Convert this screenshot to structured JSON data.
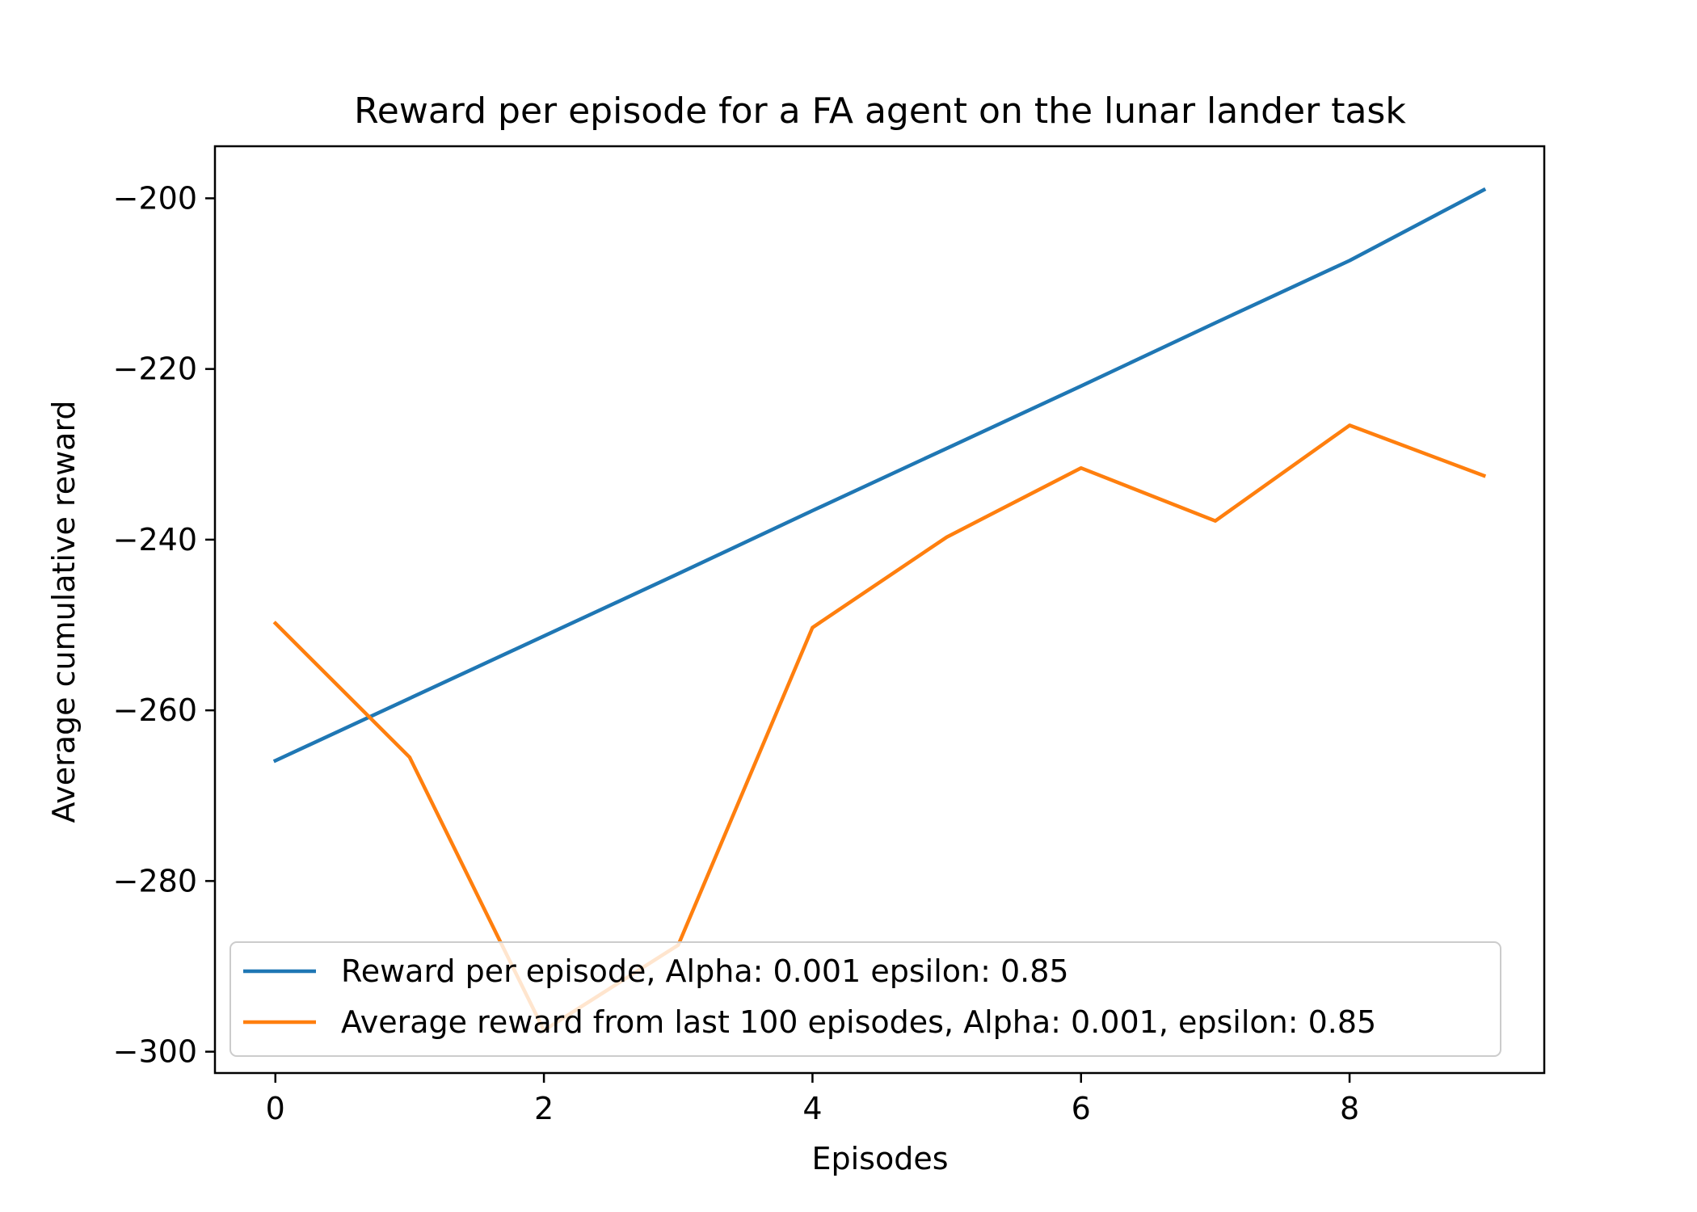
{
  "chart_data": {
    "type": "line",
    "title": "Reward per episode for a FA agent on the lunar lander task",
    "xlabel": "Episodes",
    "ylabel": "Average cumulative reward",
    "xlim": [
      -0.45,
      9.45
    ],
    "ylim": [
      -302.5,
      -193.9
    ],
    "xticks": [
      0,
      2,
      4,
      6,
      8
    ],
    "xtick_labels": [
      "0",
      "2",
      "4",
      "6",
      "8"
    ],
    "yticks": [
      -200,
      -220,
      -240,
      -260,
      -280,
      -300
    ],
    "ytick_labels": [
      "−200",
      "−220",
      "−240",
      "−260",
      "−280",
      "−300"
    ],
    "grid": false,
    "legend_position": "lower-right",
    "x": [
      0,
      1,
      2,
      3,
      4,
      5,
      6,
      7,
      8,
      9
    ],
    "series": [
      {
        "name": "Reward per episode, Alpha: 0.001 epsilon: 0.85",
        "color": "#1f77b4",
        "values": [
          -265.9,
          -258.6,
          -251.3,
          -244.0,
          -236.6,
          -229.3,
          -222.0,
          -214.6,
          -207.3,
          -199.0
        ]
      },
      {
        "name": "Average reward from last 100 episodes, Alpha: 0.001, epsilon: 0.85",
        "color": "#ff7f0e",
        "values": [
          -249.8,
          -265.5,
          -297.5,
          -287.5,
          -250.3,
          -239.7,
          -231.6,
          -237.8,
          -226.6,
          -232.5
        ]
      }
    ]
  }
}
